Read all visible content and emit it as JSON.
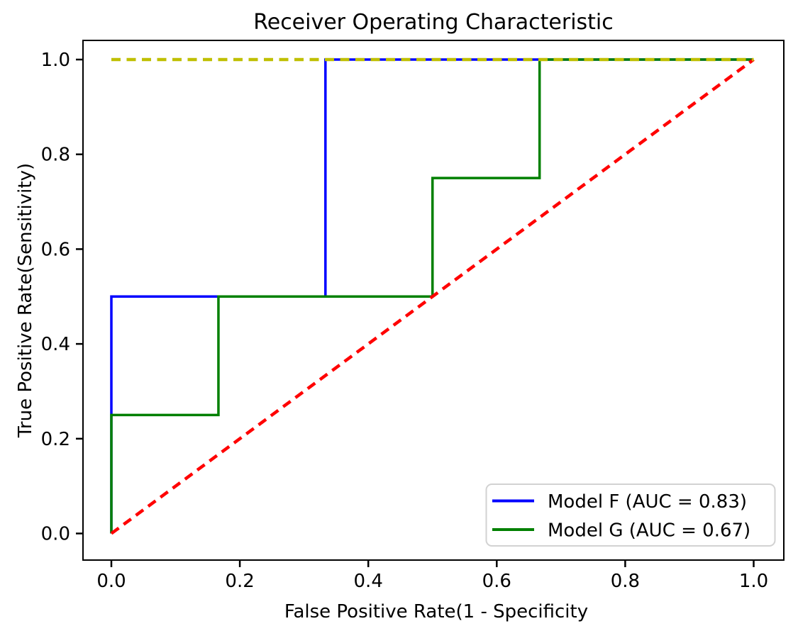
{
  "chart_data": {
    "type": "line",
    "title": "Receiver Operating Characteristic",
    "xlabel": "False Positive Rate(1 - Specificity",
    "ylabel": "True Positive Rate(Sensitivity)",
    "xlim": [
      0.0,
      1.0
    ],
    "ylim": [
      0.0,
      1.0
    ],
    "grid": false,
    "xticks": [
      0.0,
      0.2,
      0.4,
      0.6,
      0.8,
      1.0
    ],
    "yticks": [
      0.0,
      0.2,
      0.4,
      0.6,
      0.8,
      1.0
    ],
    "xtick_labels": [
      "0.0",
      "0.2",
      "0.4",
      "0.6",
      "0.8",
      "1.0"
    ],
    "ytick_labels": [
      "0.0",
      "0.2",
      "0.4",
      "0.6",
      "0.8",
      "1.0"
    ],
    "legend_position": "lower right",
    "series": [
      {
        "name": "model-f-roc-curve",
        "label": "Model F (AUC = 0.83)",
        "color": "#0000ff",
        "linestyle": "solid",
        "in_legend": true,
        "points": [
          [
            0.0,
            0.0
          ],
          [
            0.0,
            0.5
          ],
          [
            0.3333,
            0.5
          ],
          [
            0.3333,
            1.0
          ],
          [
            1.0,
            1.0
          ]
        ]
      },
      {
        "name": "model-g-roc-curve",
        "label": "Model G (AUC = 0.67)",
        "color": "#008000",
        "linestyle": "solid",
        "in_legend": true,
        "points": [
          [
            0.0,
            0.0
          ],
          [
            0.0,
            0.25
          ],
          [
            0.1667,
            0.25
          ],
          [
            0.1667,
            0.5
          ],
          [
            0.5,
            0.5
          ],
          [
            0.5,
            0.75
          ],
          [
            0.6667,
            0.75
          ],
          [
            0.6667,
            1.0
          ],
          [
            1.0,
            1.0
          ]
        ]
      },
      {
        "name": "chance-diagonal-line",
        "label": "",
        "color": "#ff0000",
        "linestyle": "dashed",
        "in_legend": false,
        "points": [
          [
            0.0,
            0.0
          ],
          [
            1.0,
            1.0
          ]
        ]
      },
      {
        "name": "perfect-classifier-line",
        "label": "",
        "color": "#bfbf00",
        "linestyle": "dashed",
        "in_legend": false,
        "points": [
          [
            0.0,
            1.0
          ],
          [
            1.0,
            1.0
          ]
        ]
      }
    ],
    "legend": [
      {
        "label": "Model F (AUC = 0.83)",
        "color": "#0000ff"
      },
      {
        "label": "Model G (AUC = 0.67)",
        "color": "#008000"
      }
    ]
  }
}
